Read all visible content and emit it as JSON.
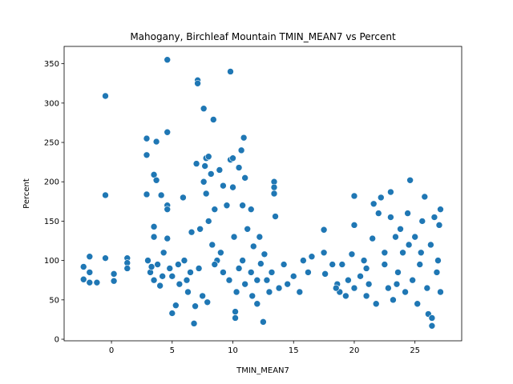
{
  "chart_data": {
    "type": "scatter",
    "title": "Mahogany, Birchleaf Mountain TMIN_MEAN7 vs Percent",
    "x_label": "TMIN_MEAN7",
    "y_label": "Percent",
    "color": "#1f77b4",
    "xlim": [
      -3.9,
      28.85
    ],
    "ylim": [
      -2,
      372
    ],
    "xticks": [
      0,
      5,
      10,
      15,
      20,
      25
    ],
    "yticks": [
      0,
      50,
      100,
      150,
      200,
      250,
      300,
      350
    ],
    "x": [
      -2.3,
      -2.3,
      -1.8,
      -1.8,
      -1.8,
      -1.2,
      -0.5,
      -0.5,
      -0.5,
      0.2,
      0.2,
      1.3,
      1.3,
      1.3,
      2.9,
      2.9,
      2.9,
      3.5,
      3.7,
      3.7,
      4.1,
      4.6,
      4.6,
      4.6,
      4.6,
      3.5,
      3.5,
      3.0,
      3.2,
      3.5,
      3.8,
      4.0,
      4.3,
      4.6,
      4.8,
      5.0,
      5.0,
      5.3,
      5.6,
      5.9,
      6.0,
      6.3,
      6.5,
      6.6,
      6.8,
      6.9,
      7.1,
      7.1,
      7.0,
      7.3,
      7.5,
      7.6,
      7.7,
      7.8,
      8.0,
      8.2,
      8.4,
      8.5,
      8.0,
      7.6,
      7.8,
      8.3,
      8.7,
      7.9,
      8.9,
      9.2,
      9.5,
      9.8,
      9.8,
      10.0,
      10.0,
      10.2,
      10.2,
      10.5,
      10.7,
      10.9,
      11.0,
      10.8,
      11.2,
      11.5,
      11.7,
      12.2,
      12.3,
      12.5,
      12.6,
      13.4,
      13.4,
      13.4,
      13.5,
      12.0,
      11.6,
      10.3,
      9.7,
      9.2,
      10.5,
      11.0,
      12.8,
      13.2,
      13.8,
      14.2,
      14.5,
      15.0,
      15.5,
      15.8,
      16.2,
      16.5,
      17.5,
      17.5,
      17.6,
      18.2,
      18.6,
      18.8,
      19.0,
      19.3,
      19.8,
      20.0,
      20.0,
      20.0,
      20.5,
      20.8,
      21.0,
      21.2,
      21.5,
      21.6,
      21.8,
      22.0,
      22.2,
      22.5,
      22.8,
      23.0,
      23.0,
      23.2,
      23.4,
      23.6,
      23.8,
      24.0,
      24.2,
      24.4,
      24.6,
      24.8,
      25.0,
      25.2,
      25.4,
      25.6,
      25.8,
      26.0,
      26.1,
      26.3,
      26.4,
      26.4,
      26.6,
      26.8,
      27.0,
      27.1,
      27.1,
      26.9,
      25.5,
      24.5,
      23.5,
      22.5,
      21.0,
      19.5,
      18.5,
      5.5,
      6.2,
      4.2,
      3.3,
      7.2,
      8.5,
      9.0,
      10.1,
      10.8,
      11.5,
      12.0,
      13.0
    ],
    "y": [
      92,
      76,
      105,
      85,
      72,
      72,
      309,
      183,
      103,
      83,
      74,
      103,
      97,
      90,
      255,
      234,
      184,
      209,
      251,
      202,
      183,
      355,
      263,
      170,
      165,
      143,
      130,
      100,
      85,
      75,
      95,
      68,
      110,
      128,
      90,
      80,
      33,
      43,
      70,
      180,
      100,
      60,
      85,
      136,
      20,
      42,
      329,
      325,
      223,
      140,
      55,
      293,
      220,
      230,
      232,
      210,
      279,
      165,
      150,
      200,
      185,
      120,
      100,
      47,
      215,
      195,
      170,
      340,
      228,
      230,
      193,
      35,
      27,
      218,
      240,
      256,
      205,
      170,
      140,
      165,
      118,
      130,
      96,
      22,
      108,
      200,
      193,
      185,
      156,
      45,
      55,
      60,
      75,
      85,
      90,
      70,
      75,
      85,
      65,
      95,
      70,
      80,
      60,
      100,
      85,
      105,
      139,
      110,
      83,
      95,
      70,
      60,
      95,
      55,
      108,
      182,
      145,
      65,
      80,
      100,
      55,
      70,
      128,
      172,
      45,
      160,
      180,
      95,
      65,
      187,
      155,
      50,
      130,
      85,
      140,
      110,
      60,
      160,
      202,
      75,
      130,
      45,
      95,
      150,
      181,
      65,
      32,
      120,
      27,
      17,
      155,
      85,
      145,
      165,
      60,
      100,
      110,
      120,
      70,
      110,
      90,
      75,
      65,
      95,
      75,
      80,
      92,
      90,
      95,
      110,
      130,
      100,
      85,
      75,
      60
    ]
  }
}
